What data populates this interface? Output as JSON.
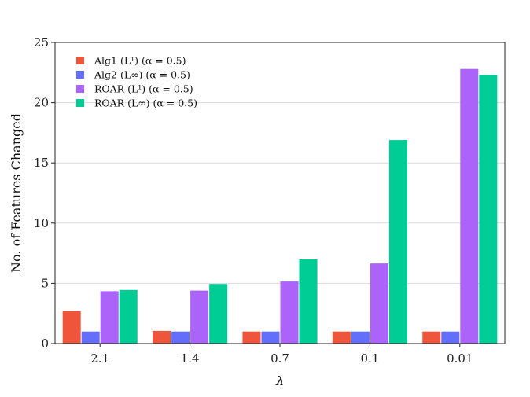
{
  "chart_data": {
    "type": "bar",
    "categories": [
      "2.1",
      "1.4",
      "0.7",
      "0.1",
      "0.01"
    ],
    "xlabel": "λ",
    "ylabel": "No. of Features Changed",
    "ylim": [
      0,
      25
    ],
    "yticks": [
      0,
      5,
      10,
      15,
      20,
      25
    ],
    "grid": "horizontal",
    "legend_position": "top-left",
    "series": [
      {
        "name": "Alg1 (L¹) (α = 0.5)",
        "color": "#EF553B",
        "values": [
          2.7,
          1.05,
          1.0,
          1.0,
          1.0
        ]
      },
      {
        "name": "Alg2 (L∞) (α = 0.5)",
        "color": "#636EFA",
        "values": [
          1.0,
          1.0,
          1.0,
          1.0,
          1.0
        ]
      },
      {
        "name": "ROAR (L¹) (α = 0.5)",
        "color": "#AB63FA",
        "values": [
          4.35,
          4.4,
          5.15,
          6.65,
          22.8
        ]
      },
      {
        "name": "ROAR (L∞) (α = 0.5)",
        "color": "#00CC96",
        "values": [
          4.45,
          4.95,
          7.0,
          16.9,
          22.3
        ]
      }
    ]
  }
}
